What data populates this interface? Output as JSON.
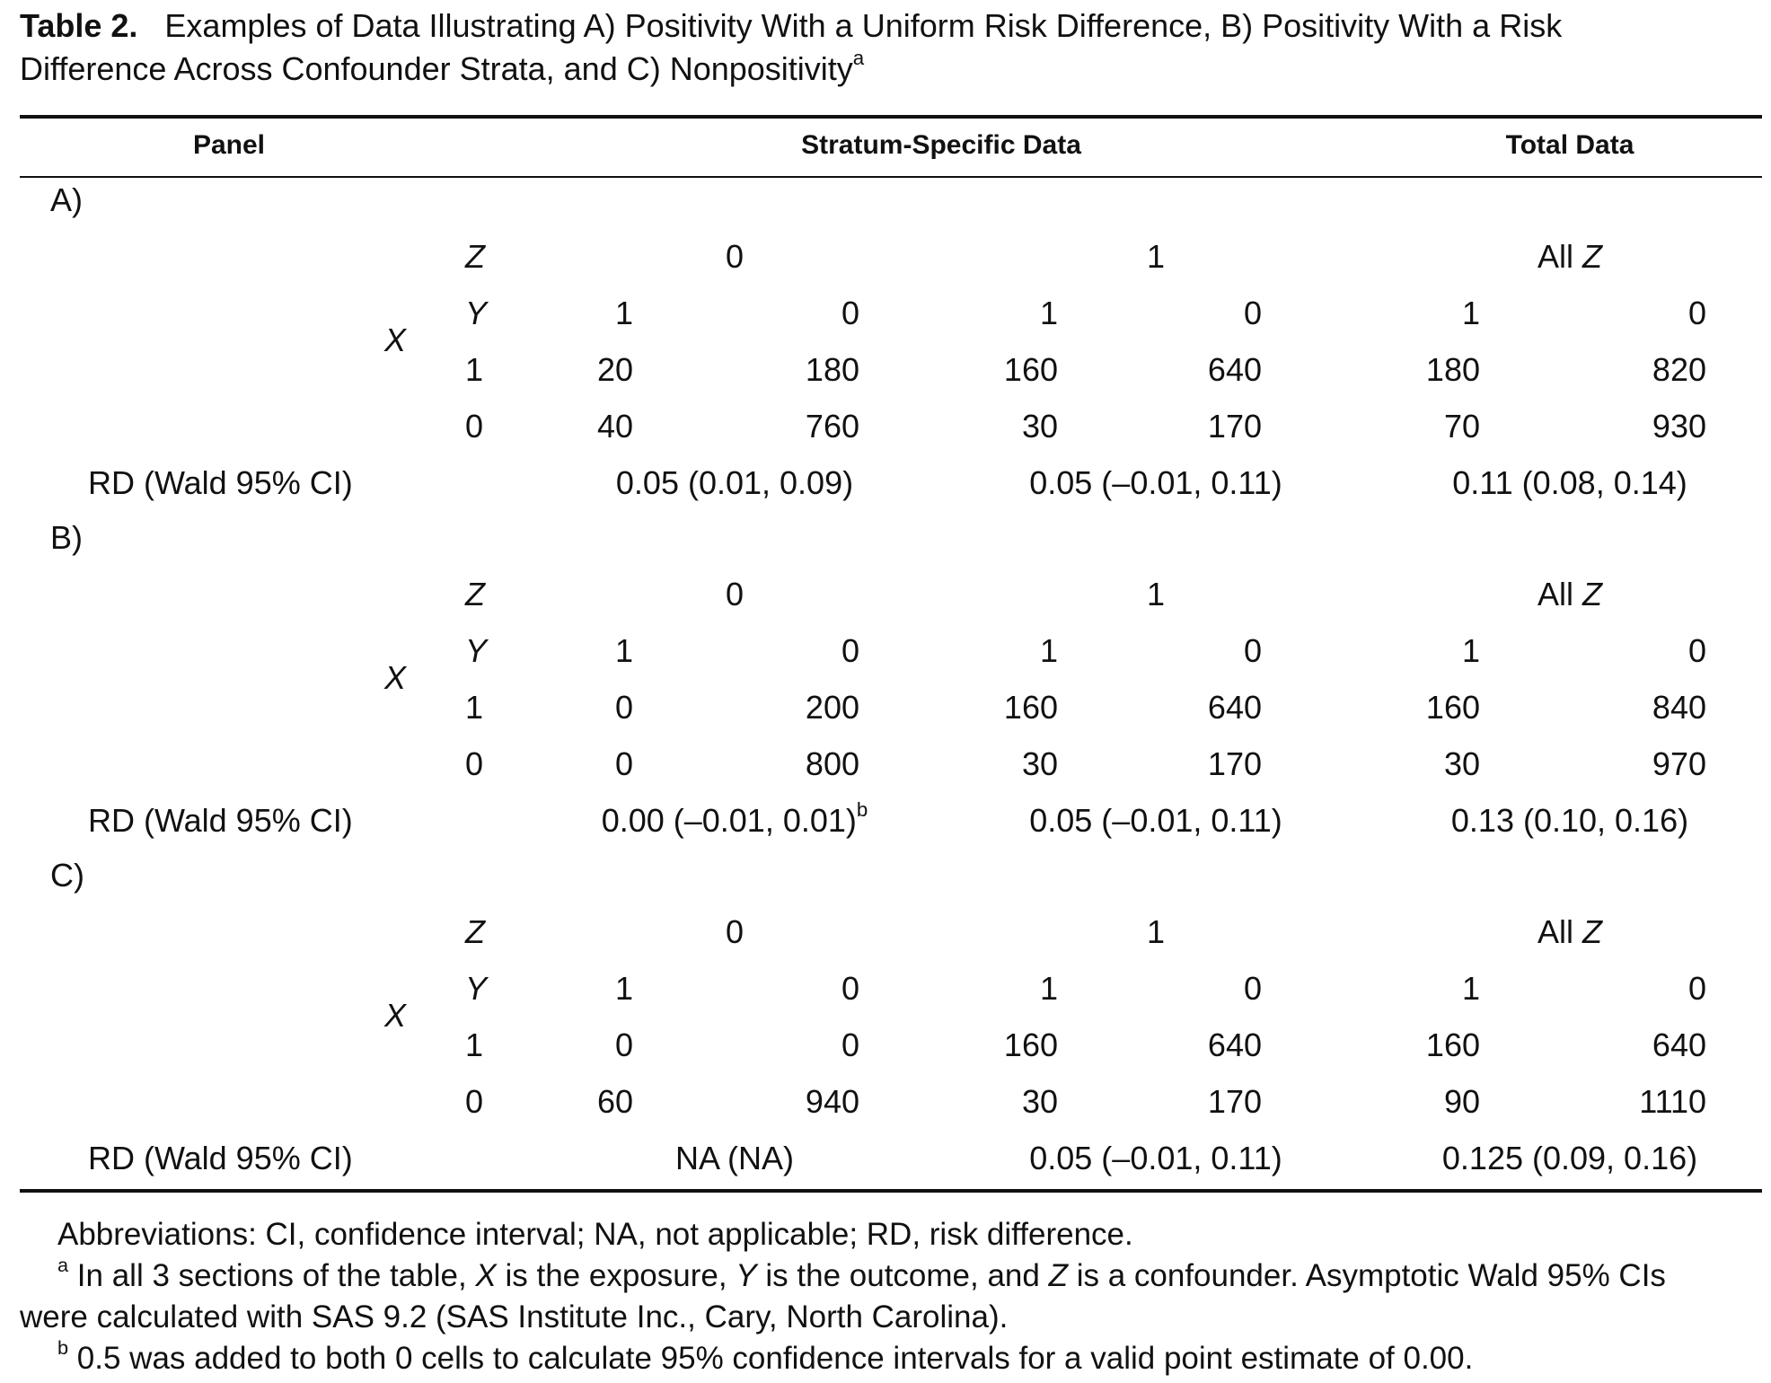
{
  "title": {
    "label": "Table 2.",
    "line1": "Examples of Data Illustrating A) Positivity With a Uniform Risk Difference, B) Positivity With a Risk",
    "line2": "Difference Across Confounder Strata, and C) Nonpositivity",
    "sup": "a"
  },
  "header": {
    "panel": "Panel",
    "stratum": "Stratum-Specific Data",
    "total": "Total Data"
  },
  "labels": {
    "z": "Z",
    "y": "Y",
    "x": "X",
    "rd": "RD (Wald 95% CI)",
    "all": "All ",
    "z0": "0",
    "z1": "1"
  },
  "panels": [
    {
      "name": "A)",
      "y_header": [
        "1",
        "0",
        "1",
        "0",
        "1",
        "0"
      ],
      "rows": [
        {
          "x": "1",
          "cells": [
            "20",
            "180",
            "160",
            "640",
            "180",
            "820"
          ]
        },
        {
          "x": "0",
          "cells": [
            "40",
            "760",
            "30",
            "170",
            "70",
            "930"
          ]
        }
      ],
      "rd": [
        "0.05 (0.01, 0.09)",
        "0.05 (–0.01, 0.11)",
        "0.11 (0.08, 0.14)"
      ],
      "rd_sup": ""
    },
    {
      "name": "B)",
      "y_header": [
        "1",
        "0",
        "1",
        "0",
        "1",
        "0"
      ],
      "rows": [
        {
          "x": "1",
          "cells": [
            "0",
            "200",
            "160",
            "640",
            "160",
            "840"
          ]
        },
        {
          "x": "0",
          "cells": [
            "0",
            "800",
            "30",
            "170",
            "30",
            "970"
          ]
        }
      ],
      "rd": [
        "0.00 (–0.01, 0.01)",
        "0.05 (–0.01, 0.11)",
        "0.13 (0.10, 0.16)"
      ],
      "rd_sup": "b"
    },
    {
      "name": "C)",
      "y_header": [
        "1",
        "0",
        "1",
        "0",
        "1",
        "0"
      ],
      "rows": [
        {
          "x": "1",
          "cells": [
            "0",
            "0",
            "160",
            "640",
            "160",
            "640"
          ]
        },
        {
          "x": "0",
          "cells": [
            "60",
            "940",
            "30",
            "170",
            "90",
            "1110"
          ]
        }
      ],
      "rd": [
        "NA (NA)",
        "0.05 (–0.01, 0.11)",
        "0.125 (0.09, 0.16)"
      ],
      "rd_sup": ""
    }
  ],
  "footnotes": {
    "abbreviations": "Abbreviations: CI, confidence interval; NA, not applicable; RD, risk difference.",
    "a_mark": "a",
    "a_text_1": " In all 3 sections of the table, ",
    "a_x": "X",
    "a_text_2": " is the exposure, ",
    "a_y": "Y",
    "a_text_3": " is the outcome, and ",
    "a_z": "Z",
    "a_text_4": " is a confounder. Asymptotic Wald 95% CIs",
    "a_line2": "were calculated with SAS 9.2 (SAS Institute Inc., Cary, North Carolina).",
    "b_mark": "b",
    "b_text": " 0.5 was added to both 0 cells to calculate 95% confidence intervals for a valid point estimate of 0.00."
  }
}
